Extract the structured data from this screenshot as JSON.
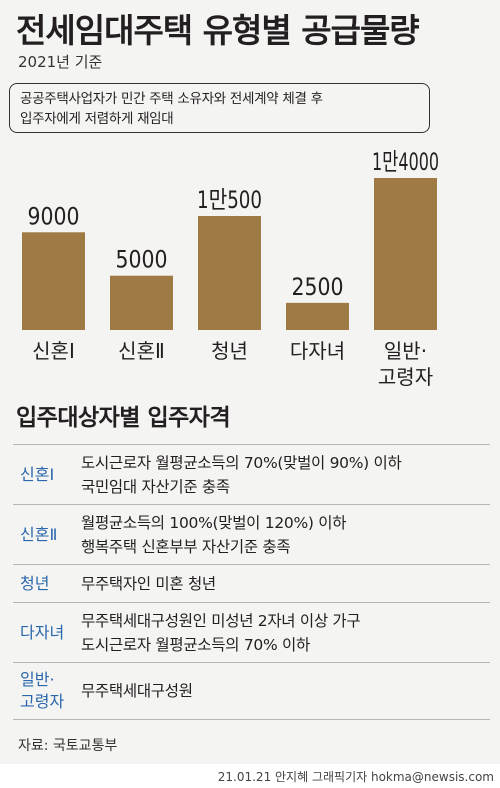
{
  "title": "전세임대주택 유형별 공급물량",
  "subtitle": "2021년 기준",
  "note_lines": [
    "공공주택사업자가 민간 주택 소유자와 전세계약 체결 후",
    "입주자에게 저렴하게 재임대"
  ],
  "chart_data": {
    "type": "bar",
    "categories": [
      "신혼Ⅰ",
      "신혼Ⅱ",
      "청년",
      "다자녀",
      "일반·고령자"
    ],
    "values": [
      9000,
      5000,
      10500,
      2500,
      14000
    ],
    "value_labels": [
      "9000",
      "5000",
      "1만500",
      "2500",
      "1만4000"
    ],
    "category_lines": [
      [
        "신혼Ⅰ"
      ],
      [
        "신혼Ⅱ"
      ],
      [
        "청년"
      ],
      [
        "다자녀"
      ],
      [
        "일반·",
        "고령자"
      ]
    ],
    "bar_color": "#a07a45",
    "ylim": [
      0,
      14000
    ],
    "grid": false,
    "legend": "none"
  },
  "requirements": {
    "title": "입주대상자별 입주자격",
    "rows": [
      {
        "label_lines": [
          "신혼Ⅰ"
        ],
        "desc_lines": [
          "도시근로자 월평균소득의 70%(맞벌이 90%) 이하",
          "국민임대 자산기준 충족"
        ]
      },
      {
        "label_lines": [
          "신혼Ⅱ"
        ],
        "desc_lines": [
          "월평균소득의 100%(맞벌이 120%) 이하",
          "행복주택 신혼부부 자산기준 충족"
        ]
      },
      {
        "label_lines": [
          "청년"
        ],
        "desc_lines": [
          "무주택자인 미혼 청년"
        ]
      },
      {
        "label_lines": [
          "다자녀"
        ],
        "desc_lines": [
          "무주택세대구성원인 미성년 2자녀 이상 가구",
          "도시근로자 월평균소득의 70% 이하"
        ]
      },
      {
        "label_lines": [
          "일반·",
          "고령자"
        ],
        "desc_lines": [
          "무주택세대구성원"
        ]
      }
    ],
    "label_color": "#2a67ad"
  },
  "source": "자료: 국토교통부",
  "credit": "21.01.21 안지혜 그래픽기자 hokma@newsis.com"
}
